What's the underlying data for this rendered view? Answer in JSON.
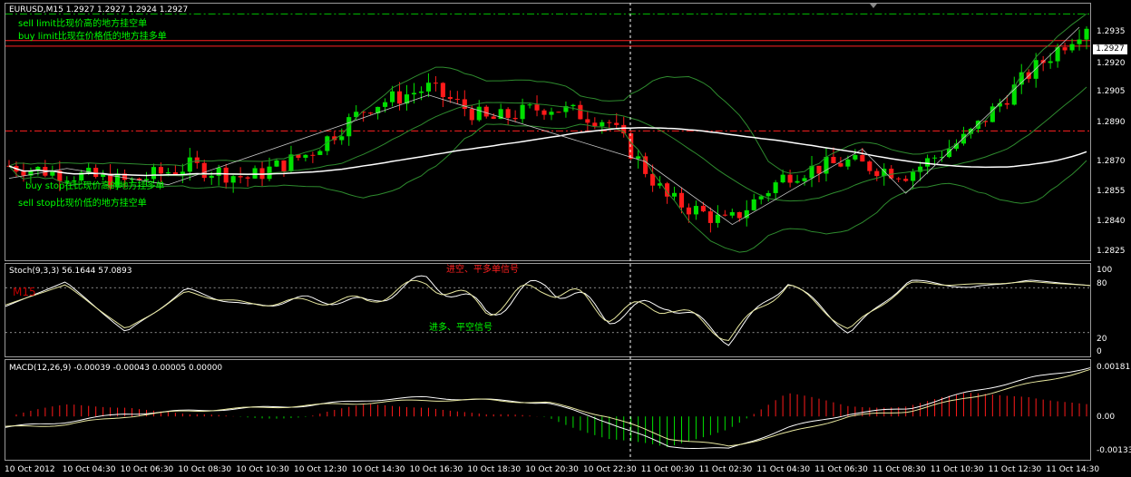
{
  "window": {
    "symbol_header": "EURUSD,M15  1.2927 1.2927 1.2924 1.2927"
  },
  "annotations": {
    "sell_limit": "sell limit比现价高的地方挂空单",
    "buy_limit": "buy limit比现在价格低的地方挂多单",
    "buy_stop": "buy stop在比现价高的地方挂多单",
    "sell_stop": "sell stop比现价低的地方挂空单",
    "stoch_top": "进空、平多单信号",
    "stoch_bottom": "进多、平空信号",
    "m15": "M15"
  },
  "price_axis": {
    "ticks": [
      "1.2935",
      "1.2920",
      "1.2905",
      "1.2890",
      "1.2870",
      "1.2855",
      "1.2840",
      "1.2825"
    ],
    "current_price": "1.2927"
  },
  "stoch": {
    "header": "Stoch(9,3,3) 56.1644 57.0893",
    "ticks": [
      "100",
      "80",
      "20",
      "0"
    ]
  },
  "macd": {
    "header": "MACD(12,26,9) -0.00039 -0.00043 0.00005 0.00000",
    "ticks": [
      "0.00181",
      "0.00",
      "-0.00133"
    ]
  },
  "time_axis": {
    "labels": [
      "10 Oct 2012",
      "10 Oct 04:30",
      "10 Oct 06:30",
      "10 Oct 08:30",
      "10 Oct 10:30",
      "10 Oct 12:30",
      "10 Oct 14:30",
      "10 Oct 16:30",
      "10 Oct 18:30",
      "10 Oct 20:30",
      "10 Oct 22:30",
      "11 Oct 00:30",
      "11 Oct 02:30",
      "11 Oct 04:30",
      "11 Oct 06:30",
      "11 Oct 08:30",
      "11 Oct 10:30",
      "11 Oct 12:30",
      "11 Oct 14:30"
    ]
  },
  "colors": {
    "bull": "#00e000",
    "bear": "#ff1a1a",
    "bands": "#2e8b2e",
    "ma": "#ffffff",
    "level_red": "#ff2020",
    "level_green": "#00c000",
    "text_green": "#00ff00",
    "text_red": "#ff2020",
    "crosshair": "#ffffff"
  },
  "chart_data": [
    {
      "type": "candlestick",
      "title": "EURUSD,M15",
      "ylim": [
        1.282,
        1.2945
      ],
      "x": [
        "10 Oct 2012",
        "10 Oct 04:30",
        "10 Oct 06:30",
        "10 Oct 08:30",
        "10 Oct 10:30",
        "10 Oct 12:30",
        "10 Oct 14:30",
        "10 Oct 16:30",
        "10 Oct 18:30",
        "10 Oct 20:30",
        "10 Oct 22:30",
        "11 Oct 00:30",
        "11 Oct 02:30",
        "11 Oct 04:30",
        "11 Oct 06:30",
        "11 Oct 08:30",
        "11 Oct 10:30",
        "11 Oct 12:30",
        "11 Oct 14:30"
      ],
      "close_path": [
        1.2866,
        1.2862,
        1.2858,
        1.2866,
        1.286,
        1.2872,
        1.2895,
        1.2904,
        1.2888,
        1.2895,
        1.2888,
        1.285,
        1.2838,
        1.2862,
        1.2868,
        1.2862,
        1.288,
        1.291,
        1.2935
      ],
      "horizontal_levels": [
        {
          "price": 1.294,
          "style": "dash-dot",
          "color": "green"
        },
        {
          "price": 1.2927,
          "style": "solid",
          "color": "red"
        },
        {
          "price": 1.2883,
          "style": "dash-dot",
          "color": "red"
        }
      ]
    },
    {
      "type": "line",
      "title": "Stoch(9,3,3)",
      "ylim": [
        0,
        100
      ],
      "levels": [
        20,
        80
      ],
      "series": [
        {
          "name": "main",
          "values": [
            55,
            88,
            20,
            78,
            55,
            65,
            60,
            92,
            48,
            88,
            42,
            60,
            10,
            90,
            20,
            90,
            80,
            90,
            83
          ]
        },
        {
          "name": "signal",
          "values": [
            57,
            84,
            24,
            74,
            58,
            62,
            63,
            88,
            52,
            84,
            46,
            56,
            14,
            86,
            24,
            86,
            84,
            88,
            83
          ]
        }
      ]
    },
    {
      "type": "line",
      "title": "MACD(12,26,9)",
      "ylim": [
        -0.00133,
        0.00181
      ],
      "series": [
        {
          "name": "main",
          "values": [
            -0.0004,
            -0.0002,
            0.0001,
            0.0002,
            0.0003,
            0.0004,
            0.0006,
            0.0007,
            0.0006,
            0.0005,
            -0.0002,
            -0.0011,
            -0.0012,
            -0.0004,
            0.0001,
            0.0003,
            0.0009,
            0.0014,
            0.0018
          ]
        },
        {
          "name": "signal",
          "values": [
            -0.0004,
            -0.0003,
            0.0,
            0.0002,
            0.0003,
            0.0004,
            0.0005,
            0.0006,
            0.0006,
            0.0005,
            0.0,
            -0.0008,
            -0.0011,
            -0.0006,
            0.0,
            0.0002,
            0.0007,
            0.0012,
            0.0017
          ]
        }
      ]
    }
  ]
}
